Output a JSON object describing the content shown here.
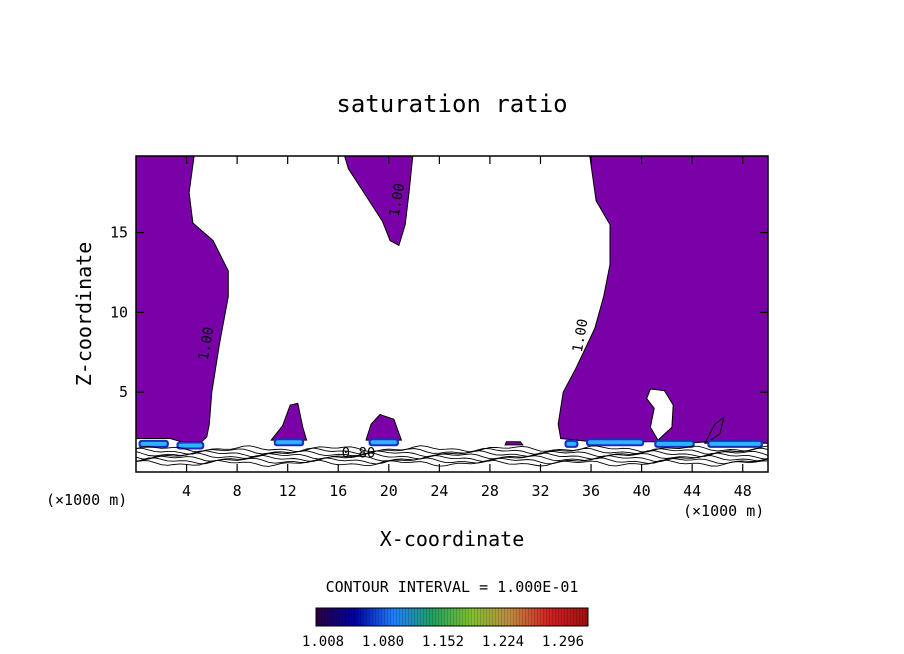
{
  "chart_data": {
    "type": "heatmap",
    "title": "saturation ratio",
    "xlabel": "X-coordinate",
    "ylabel": "Z-coordinate",
    "x_unit_left": "(×1000 m)",
    "x_unit_right": "(×1000 m)",
    "x_range": [
      0,
      50
    ],
    "y_range": [
      0,
      19.8
    ],
    "x_ticks": [
      4,
      8,
      12,
      16,
      20,
      24,
      28,
      32,
      36,
      40,
      44,
      48
    ],
    "y_ticks": [
      5,
      10,
      15
    ],
    "contour_interval_text": "CONTOUR INTERVAL = 1.000E-01",
    "contour_labels": [
      {
        "text": "1.00",
        "x": 5.9,
        "y": 8.0
      },
      {
        "text": "1.00",
        "x": 21.0,
        "y": 17.0
      },
      {
        "text": "1.00",
        "x": 35.5,
        "y": 8.5
      },
      {
        "text": "0.80",
        "x": 17.6,
        "y": 0.9
      }
    ],
    "colorbar": {
      "tick_labels": [
        "1.008",
        "1.080",
        "1.152",
        "1.224",
        "1.296"
      ],
      "colors": [
        "#2a0040",
        "#0000a0",
        "#1f7dff",
        "#20a060",
        "#80c030",
        "#c08a40",
        "#d02020",
        "#a01010"
      ]
    },
    "fill_color": "#7a00a8",
    "low_band_color": "#2db4ff",
    "regions": [
      {
        "name": "left-column",
        "points": [
          [
            0,
            19.8
          ],
          [
            4.6,
            19.8
          ],
          [
            4.2,
            17.5
          ],
          [
            4.5,
            15.6
          ],
          [
            6.1,
            14.5
          ],
          [
            7.3,
            12.6
          ],
          [
            7.3,
            11
          ],
          [
            6.6,
            8
          ],
          [
            6.0,
            5
          ],
          [
            5.8,
            3.0
          ],
          [
            5.6,
            2.2
          ],
          [
            5.2,
            1.9
          ],
          [
            3.6,
            1.9
          ],
          [
            2.7,
            2.1
          ],
          [
            0,
            2.1
          ]
        ]
      },
      {
        "name": "top-plume",
        "points": [
          [
            16.5,
            19.8
          ],
          [
            21.9,
            19.8
          ],
          [
            21.6,
            17.5
          ],
          [
            21.3,
            15.5
          ],
          [
            20.8,
            14.2
          ],
          [
            20.1,
            14.5
          ],
          [
            19.5,
            15.7
          ],
          [
            18.2,
            17.3
          ],
          [
            16.8,
            19.0
          ]
        ]
      },
      {
        "name": "right-column",
        "points": [
          [
            35.9,
            19.8
          ],
          [
            50,
            19.8
          ],
          [
            50,
            1.8
          ],
          [
            45.0,
            1.8
          ],
          [
            45.8,
            3.0
          ],
          [
            46.5,
            3.4
          ],
          [
            46.2,
            2.4
          ],
          [
            45.3,
            1.9
          ],
          [
            43.4,
            1.8
          ],
          [
            41.6,
            1.9
          ],
          [
            36.1,
            1.9
          ],
          [
            33.6,
            2.1
          ],
          [
            33.4,
            3.0
          ],
          [
            33.8,
            5.0
          ],
          [
            34.8,
            6.5
          ],
          [
            36.3,
            9.0
          ],
          [
            37.0,
            11.0
          ],
          [
            37.5,
            13.0
          ],
          [
            37.5,
            15.5
          ],
          [
            36.4,
            17.0
          ]
        ]
      },
      {
        "name": "puff-12",
        "points": [
          [
            10.7,
            2.0
          ],
          [
            13.5,
            2.0
          ],
          [
            13.2,
            2.8
          ],
          [
            12.8,
            4.3
          ],
          [
            12.2,
            4.2
          ],
          [
            11.6,
            2.9
          ]
        ]
      },
      {
        "name": "puff-19",
        "points": [
          [
            18.2,
            2.0
          ],
          [
            21.0,
            2.0
          ],
          [
            20.4,
            3.3
          ],
          [
            19.3,
            3.6
          ],
          [
            18.6,
            3.0
          ]
        ]
      },
      {
        "name": "puff-29",
        "points": [
          [
            29.2,
            1.7
          ],
          [
            30.6,
            1.7
          ],
          [
            30.4,
            1.9
          ],
          [
            29.3,
            1.9
          ]
        ]
      }
    ],
    "holes": [
      {
        "name": "cloud-hole-41",
        "points": [
          [
            40.7,
            5.2
          ],
          [
            41.8,
            5.1
          ],
          [
            42.5,
            4.2
          ],
          [
            42.4,
            2.8
          ],
          [
            41.3,
            2.0
          ],
          [
            40.7,
            2.8
          ],
          [
            41.0,
            4.0
          ],
          [
            40.4,
            4.6
          ]
        ]
      }
    ],
    "bright_bands": [
      {
        "x0": 0.2,
        "x1": 2.6,
        "y": 1.7
      },
      {
        "x0": 3.2,
        "x1": 5.4,
        "y": 1.6
      },
      {
        "x0": 10.9,
        "x1": 13.3,
        "y": 1.8
      },
      {
        "x0": 18.4,
        "x1": 20.8,
        "y": 1.8
      },
      {
        "x0": 33.9,
        "x1": 35.0,
        "y": 1.7
      },
      {
        "x0": 35.6,
        "x1": 40.2,
        "y": 1.8
      },
      {
        "x0": 41.0,
        "x1": 44.2,
        "y": 1.7
      },
      {
        "x0": 45.2,
        "x1": 49.6,
        "y": 1.7
      }
    ],
    "surface_contour_levels": [
      1.45,
      1.3,
      1.15,
      1.0,
      0.85,
      0.7,
      0.55
    ]
  }
}
